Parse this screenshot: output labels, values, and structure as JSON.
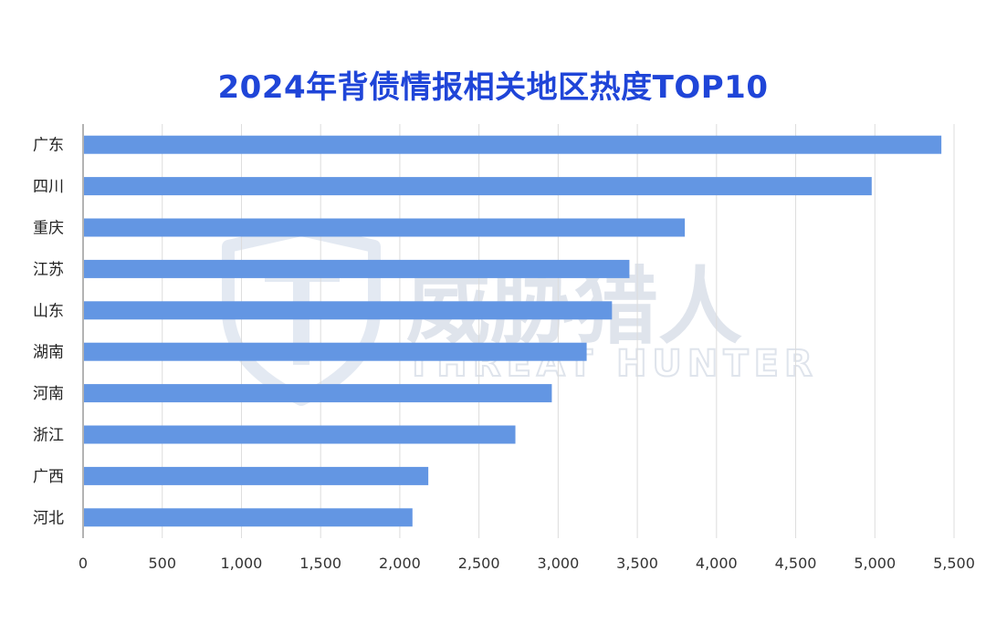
{
  "chart_data": {
    "type": "bar",
    "orientation": "horizontal",
    "title": "2024年背债情报相关地区热度TOP10",
    "categories": [
      "广东",
      "四川",
      "重庆",
      "江苏",
      "山东",
      "湖南",
      "河南",
      "浙江",
      "广西",
      "河北"
    ],
    "values": [
      5420,
      4980,
      3800,
      3450,
      3340,
      3180,
      2960,
      2730,
      2180,
      2080
    ],
    "xlim": [
      0,
      5500
    ],
    "xticks": [
      0,
      500,
      1000,
      1500,
      2000,
      2500,
      3000,
      3500,
      4000,
      4500,
      5000,
      5500
    ],
    "xtick_labels": [
      "0",
      "500",
      "1,000",
      "1,500",
      "2,000",
      "2,500",
      "3,000",
      "3,500",
      "4,000",
      "4,500",
      "5,000",
      "5,500"
    ],
    "xlabel": "",
    "ylabel": "",
    "grid": "vertical",
    "bar_color": "#6396e3",
    "title_color": "#1f45d8"
  },
  "watermark": {
    "text_cn": "威胁猎人",
    "text_en": "THREAT HUNTER",
    "color": "#dfe4ec"
  }
}
